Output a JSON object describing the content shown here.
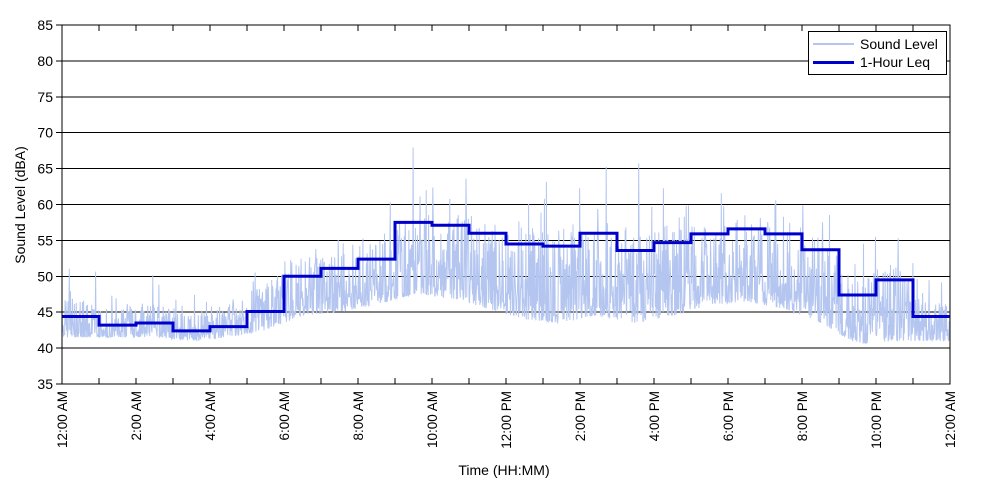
{
  "page": {
    "background": "#ffffff"
  },
  "chart_data": {
    "type": "line",
    "title": "",
    "xlabel": "Time (HH:MM)",
    "ylabel": "Sound Level (dBA)",
    "ylim": [
      35,
      85
    ],
    "ytick_step": 5,
    "ytick_labels": [
      "35",
      "40",
      "45",
      "50",
      "55",
      "60",
      "65",
      "70",
      "75",
      "80",
      "85"
    ],
    "x_hours_range": [
      0,
      24
    ],
    "xtick_every_hours": 2,
    "minor_tick_every_hours": 1,
    "xtick_labels": [
      "12:00 AM",
      "2:00 AM",
      "4:00 AM",
      "6:00 AM",
      "8:00 AM",
      "10:00 AM",
      "12:00 PM",
      "2:00 PM",
      "4:00 PM",
      "6:00 PM",
      "8:00 PM",
      "10:00 PM",
      "12:00 AM"
    ],
    "grid": "horizontal",
    "axis_color": "#000000",
    "legend": {
      "position": "top-right",
      "entries": [
        {
          "label": "Sound Level",
          "color": "#b4c6f0",
          "line_width": 2
        },
        {
          "label": "1-Hour Leq",
          "color": "#0000cc",
          "line_width": 3
        }
      ]
    },
    "series": [
      {
        "name": "Sound Level",
        "kind": "noisy-line",
        "color": "#b4c6f0",
        "envelope_by_hour": {
          "lo": [
            41.5,
            41.5,
            41.5,
            41.0,
            41.5,
            42.5,
            44.5,
            45.0,
            46.0,
            47.5,
            47.0,
            45.5,
            44.0,
            43.5,
            44.5,
            43.5,
            44.5,
            46.0,
            46.5,
            45.5,
            43.5,
            40.5,
            41.0,
            41.0
          ],
          "hi": [
            47.0,
            46.0,
            46.5,
            45.0,
            46.0,
            49.0,
            52.5,
            53.0,
            54.5,
            59.0,
            59.0,
            58.0,
            57.0,
            57.0,
            58.0,
            56.0,
            56.5,
            57.5,
            58.0,
            57.5,
            55.5,
            50.0,
            51.5,
            46.5
          ],
          "spike": [
            53.5,
            48.0,
            51.5,
            47.5,
            49.0,
            55.5,
            55.0,
            55.5,
            57.5,
            68.7,
            65.0,
            69.3,
            63.5,
            64.5,
            66.5,
            67.0,
            62.0,
            68.5,
            63.0,
            62.5,
            61.0,
            56.5,
            56.0,
            52.0
          ]
        }
      },
      {
        "name": "1-Hour Leq",
        "kind": "step-line",
        "color": "#0000cc",
        "hourly_values": [
          44.4,
          43.2,
          43.5,
          42.4,
          43.0,
          45.1,
          50.0,
          51.1,
          52.4,
          57.5,
          57.1,
          56.0,
          54.5,
          54.2,
          56.0,
          53.6,
          54.7,
          55.9,
          56.6,
          55.9,
          53.7,
          47.4,
          49.5,
          44.4
        ]
      }
    ]
  }
}
